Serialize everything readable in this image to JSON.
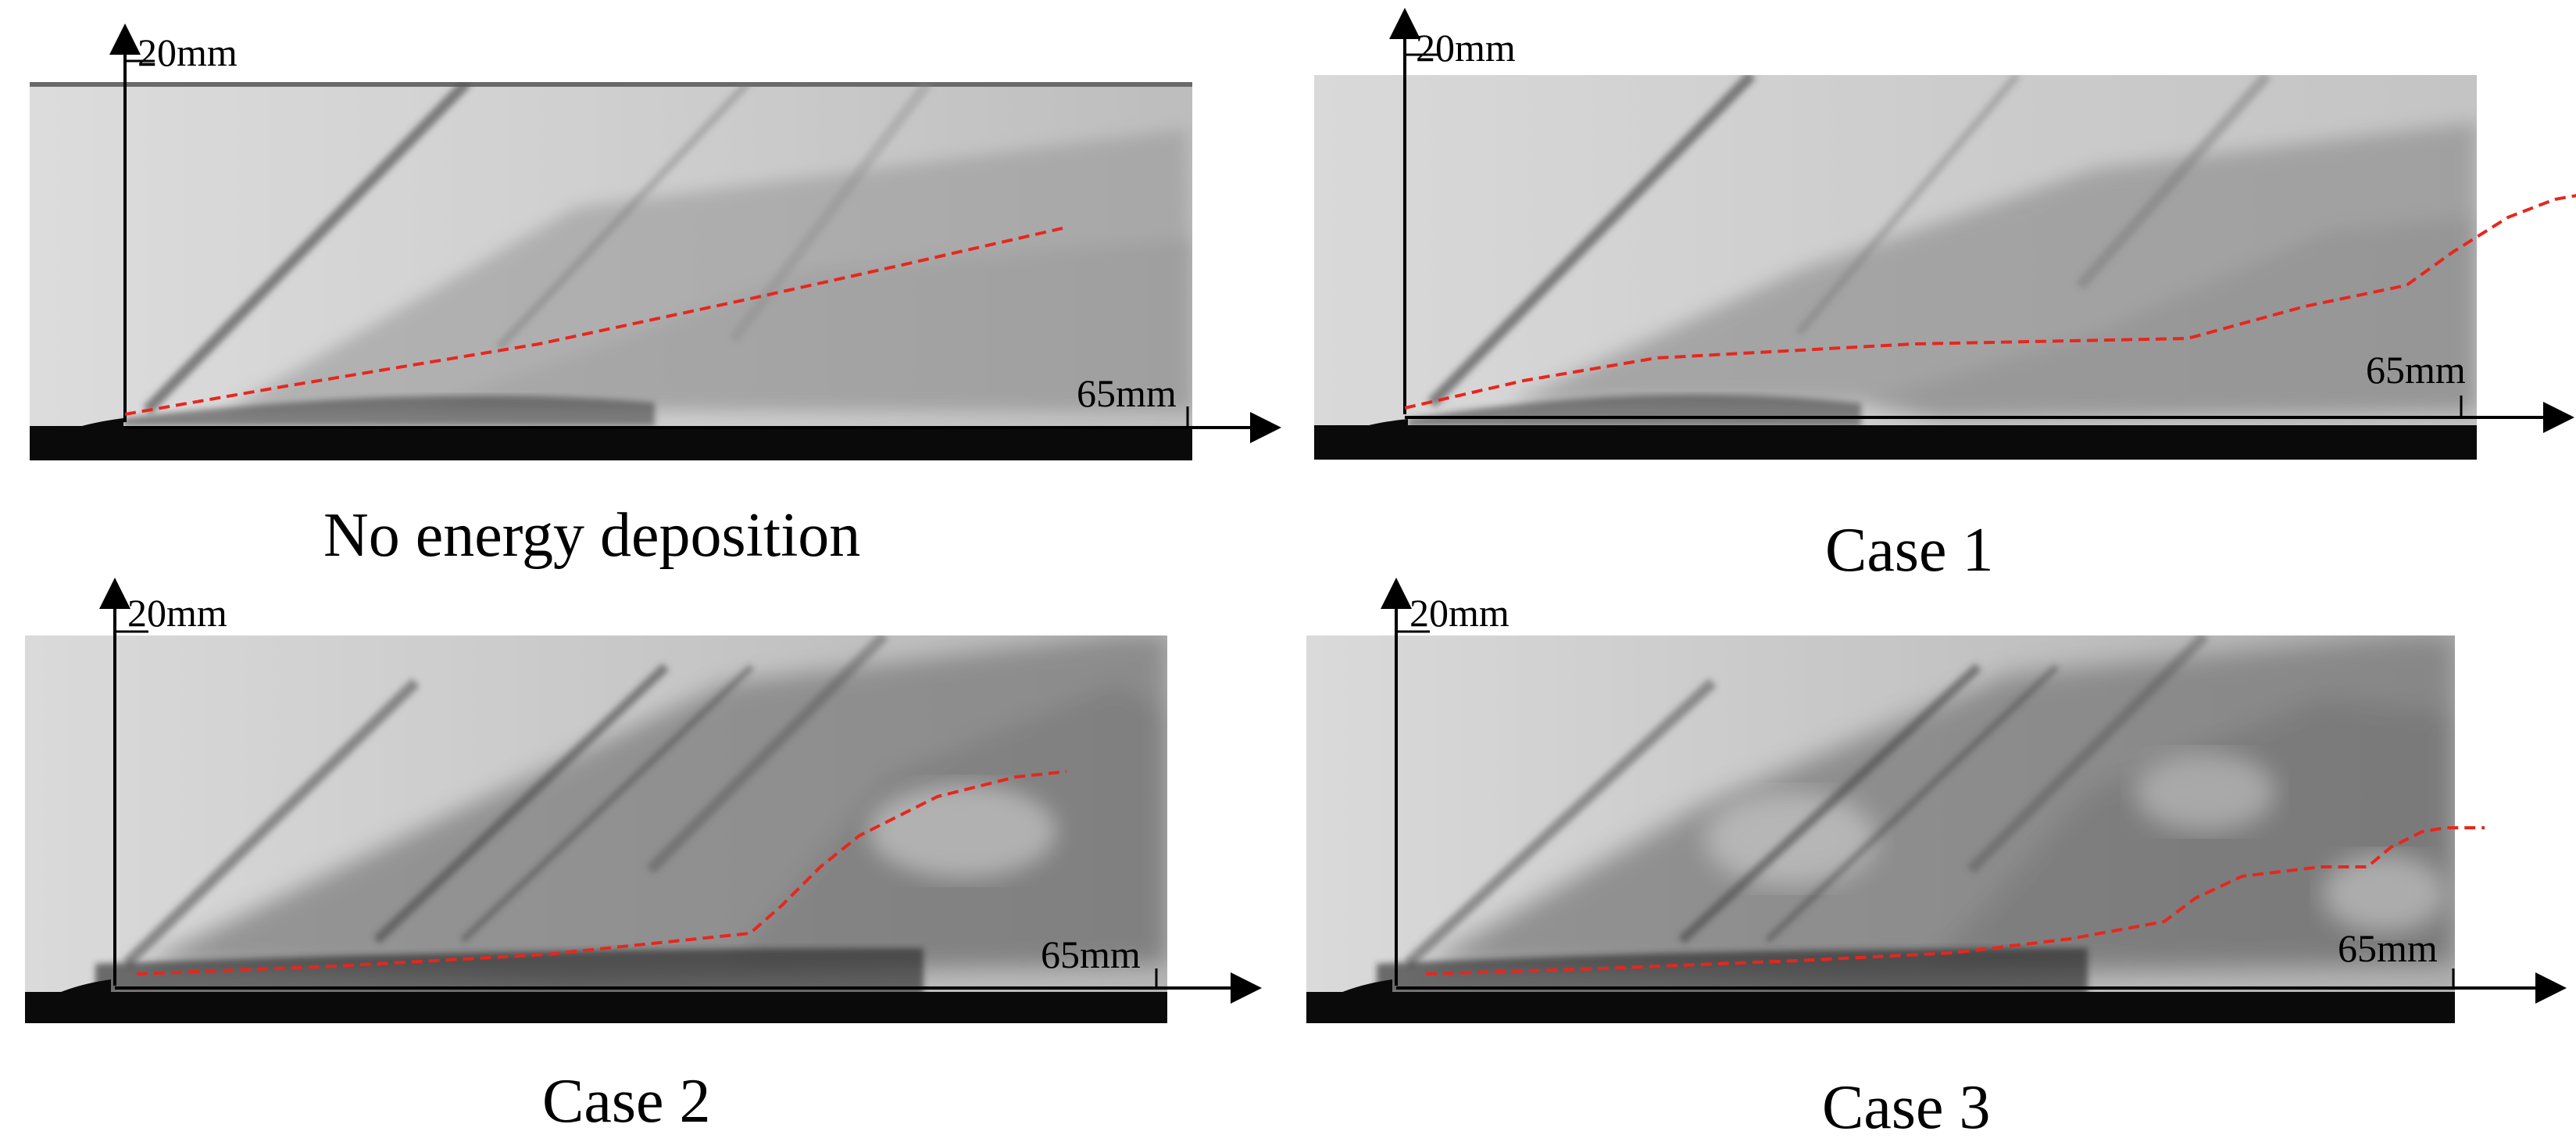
{
  "panels": [
    {
      "id": "none",
      "caption": "No energy deposition",
      "y_label": "20mm",
      "x_label": "65mm"
    },
    {
      "id": "case1",
      "caption": "Case 1",
      "y_label": "20mm",
      "x_label": "65mm"
    },
    {
      "id": "case2",
      "caption": "Case 2",
      "y_label": "20mm",
      "x_label": "65mm"
    },
    {
      "id": "case3",
      "caption": "Case 3",
      "y_label": "20mm",
      "x_label": "65mm"
    }
  ],
  "colors": {
    "dashed_line": "#e8261e",
    "axis": "#000000"
  }
}
